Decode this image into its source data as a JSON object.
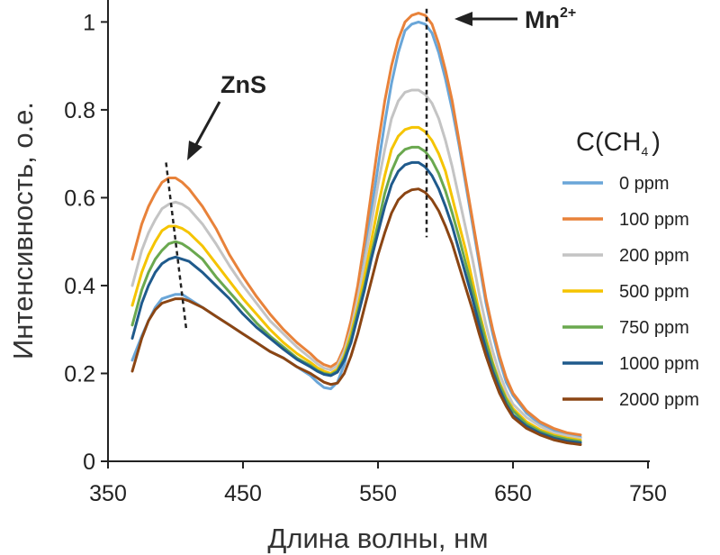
{
  "chart_data": {
    "type": "line",
    "title": "",
    "xlabel": "Длина волны, нм",
    "ylabel": "Интенсивность, о.е.",
    "xlim": [
      350,
      750
    ],
    "ylim": [
      0,
      1.05
    ],
    "x_ticks": [
      "350",
      "450",
      "550",
      "650",
      "750"
    ],
    "y_ticks": [
      "0",
      "0.2",
      "0.4",
      "0.6",
      "0.8",
      "1"
    ],
    "grid": false,
    "legend_position": "right",
    "legend": {
      "title_main": "C(CH",
      "title_sub": "4",
      "title_close": ")"
    },
    "annotations": {
      "zns": "ZnS",
      "mn": "Mn",
      "mn_sup": "2+"
    },
    "x": [
      368,
      375,
      380,
      385,
      390,
      395,
      400,
      405,
      410,
      420,
      430,
      440,
      450,
      460,
      470,
      480,
      490,
      500,
      505,
      510,
      515,
      520,
      525,
      530,
      535,
      540,
      545,
      550,
      555,
      560,
      565,
      570,
      575,
      580,
      585,
      590,
      595,
      600,
      605,
      610,
      615,
      620,
      625,
      630,
      635,
      640,
      645,
      650,
      660,
      670,
      680,
      690,
      700
    ],
    "series": [
      {
        "name": "0 ppm",
        "color": "#6aa6d8",
        "values": [
          0.23,
          0.285,
          0.32,
          0.35,
          0.37,
          0.375,
          0.38,
          0.38,
          0.37,
          0.35,
          0.33,
          0.31,
          0.29,
          0.27,
          0.25,
          0.235,
          0.215,
          0.195,
          0.18,
          0.168,
          0.165,
          0.18,
          0.22,
          0.28,
          0.36,
          0.46,
          0.57,
          0.67,
          0.77,
          0.86,
          0.93,
          0.98,
          0.995,
          1.0,
          0.995,
          0.975,
          0.93,
          0.87,
          0.8,
          0.72,
          0.63,
          0.54,
          0.45,
          0.36,
          0.29,
          0.23,
          0.18,
          0.15,
          0.11,
          0.085,
          0.07,
          0.06,
          0.055
        ]
      },
      {
        "name": "100 ppm",
        "color": "#e8823a",
        "values": [
          0.46,
          0.54,
          0.58,
          0.61,
          0.635,
          0.645,
          0.645,
          0.635,
          0.62,
          0.58,
          0.53,
          0.47,
          0.42,
          0.375,
          0.335,
          0.3,
          0.27,
          0.245,
          0.23,
          0.22,
          0.215,
          0.225,
          0.26,
          0.32,
          0.4,
          0.5,
          0.61,
          0.72,
          0.82,
          0.9,
          0.96,
          1.0,
          1.015,
          1.02,
          1.015,
          0.995,
          0.95,
          0.89,
          0.82,
          0.73,
          0.64,
          0.55,
          0.46,
          0.37,
          0.3,
          0.24,
          0.19,
          0.155,
          0.115,
          0.09,
          0.075,
          0.065,
          0.06
        ]
      },
      {
        "name": "200 ppm",
        "color": "#c4c4c4",
        "values": [
          0.4,
          0.48,
          0.52,
          0.55,
          0.575,
          0.585,
          0.59,
          0.585,
          0.575,
          0.54,
          0.495,
          0.445,
          0.4,
          0.36,
          0.32,
          0.29,
          0.26,
          0.235,
          0.222,
          0.212,
          0.208,
          0.218,
          0.25,
          0.3,
          0.37,
          0.45,
          0.54,
          0.63,
          0.71,
          0.78,
          0.82,
          0.84,
          0.845,
          0.845,
          0.835,
          0.815,
          0.78,
          0.73,
          0.67,
          0.6,
          0.53,
          0.46,
          0.38,
          0.31,
          0.25,
          0.2,
          0.16,
          0.13,
          0.1,
          0.08,
          0.065,
          0.058,
          0.052
        ]
      },
      {
        "name": "500 ppm",
        "color": "#f5c400",
        "values": [
          0.355,
          0.43,
          0.47,
          0.5,
          0.525,
          0.535,
          0.535,
          0.53,
          0.52,
          0.49,
          0.45,
          0.41,
          0.37,
          0.335,
          0.3,
          0.27,
          0.245,
          0.225,
          0.213,
          0.205,
          0.2,
          0.21,
          0.24,
          0.29,
          0.35,
          0.42,
          0.5,
          0.58,
          0.65,
          0.71,
          0.74,
          0.755,
          0.76,
          0.76,
          0.75,
          0.73,
          0.7,
          0.66,
          0.6,
          0.54,
          0.48,
          0.41,
          0.34,
          0.28,
          0.225,
          0.18,
          0.145,
          0.12,
          0.09,
          0.072,
          0.06,
          0.053,
          0.048
        ]
      },
      {
        "name": "750 ppm",
        "color": "#6aa84f",
        "values": [
          0.31,
          0.39,
          0.43,
          0.46,
          0.48,
          0.495,
          0.5,
          0.495,
          0.485,
          0.46,
          0.42,
          0.385,
          0.35,
          0.315,
          0.285,
          0.26,
          0.235,
          0.218,
          0.207,
          0.2,
          0.197,
          0.206,
          0.235,
          0.28,
          0.34,
          0.4,
          0.47,
          0.54,
          0.61,
          0.66,
          0.695,
          0.71,
          0.715,
          0.715,
          0.705,
          0.685,
          0.655,
          0.615,
          0.565,
          0.51,
          0.45,
          0.39,
          0.33,
          0.27,
          0.22,
          0.175,
          0.14,
          0.115,
          0.085,
          0.068,
          0.057,
          0.05,
          0.045
        ]
      },
      {
        "name": "1000 ppm",
        "color": "#1f5a8c",
        "values": [
          0.28,
          0.36,
          0.4,
          0.43,
          0.45,
          0.46,
          0.465,
          0.46,
          0.455,
          0.43,
          0.4,
          0.37,
          0.335,
          0.305,
          0.28,
          0.255,
          0.232,
          0.215,
          0.205,
          0.198,
          0.195,
          0.203,
          0.23,
          0.27,
          0.33,
          0.39,
          0.46,
          0.52,
          0.58,
          0.63,
          0.66,
          0.675,
          0.68,
          0.68,
          0.67,
          0.65,
          0.62,
          0.58,
          0.535,
          0.48,
          0.425,
          0.37,
          0.31,
          0.255,
          0.205,
          0.165,
          0.13,
          0.105,
          0.08,
          0.064,
          0.053,
          0.046,
          0.042
        ]
      },
      {
        "name": "2000 ppm",
        "color": "#8b4513",
        "values": [
          0.205,
          0.28,
          0.32,
          0.345,
          0.36,
          0.365,
          0.37,
          0.37,
          0.365,
          0.35,
          0.33,
          0.31,
          0.29,
          0.27,
          0.25,
          0.235,
          0.215,
          0.2,
          0.19,
          0.18,
          0.175,
          0.178,
          0.2,
          0.24,
          0.29,
          0.35,
          0.41,
          0.47,
          0.52,
          0.565,
          0.595,
          0.61,
          0.618,
          0.62,
          0.612,
          0.595,
          0.57,
          0.535,
          0.495,
          0.445,
          0.395,
          0.345,
          0.29,
          0.24,
          0.195,
          0.155,
          0.125,
          0.1,
          0.075,
          0.06,
          0.049,
          0.042,
          0.038
        ]
      }
    ],
    "guides": [
      {
        "name": "zns-trend",
        "x": [
          393,
          408
        ],
        "y": [
          0.68,
          0.3
        ]
      },
      {
        "name": "mn-peak",
        "x": [
          586,
          586
        ],
        "y": [
          1.03,
          0.51
        ]
      }
    ]
  }
}
